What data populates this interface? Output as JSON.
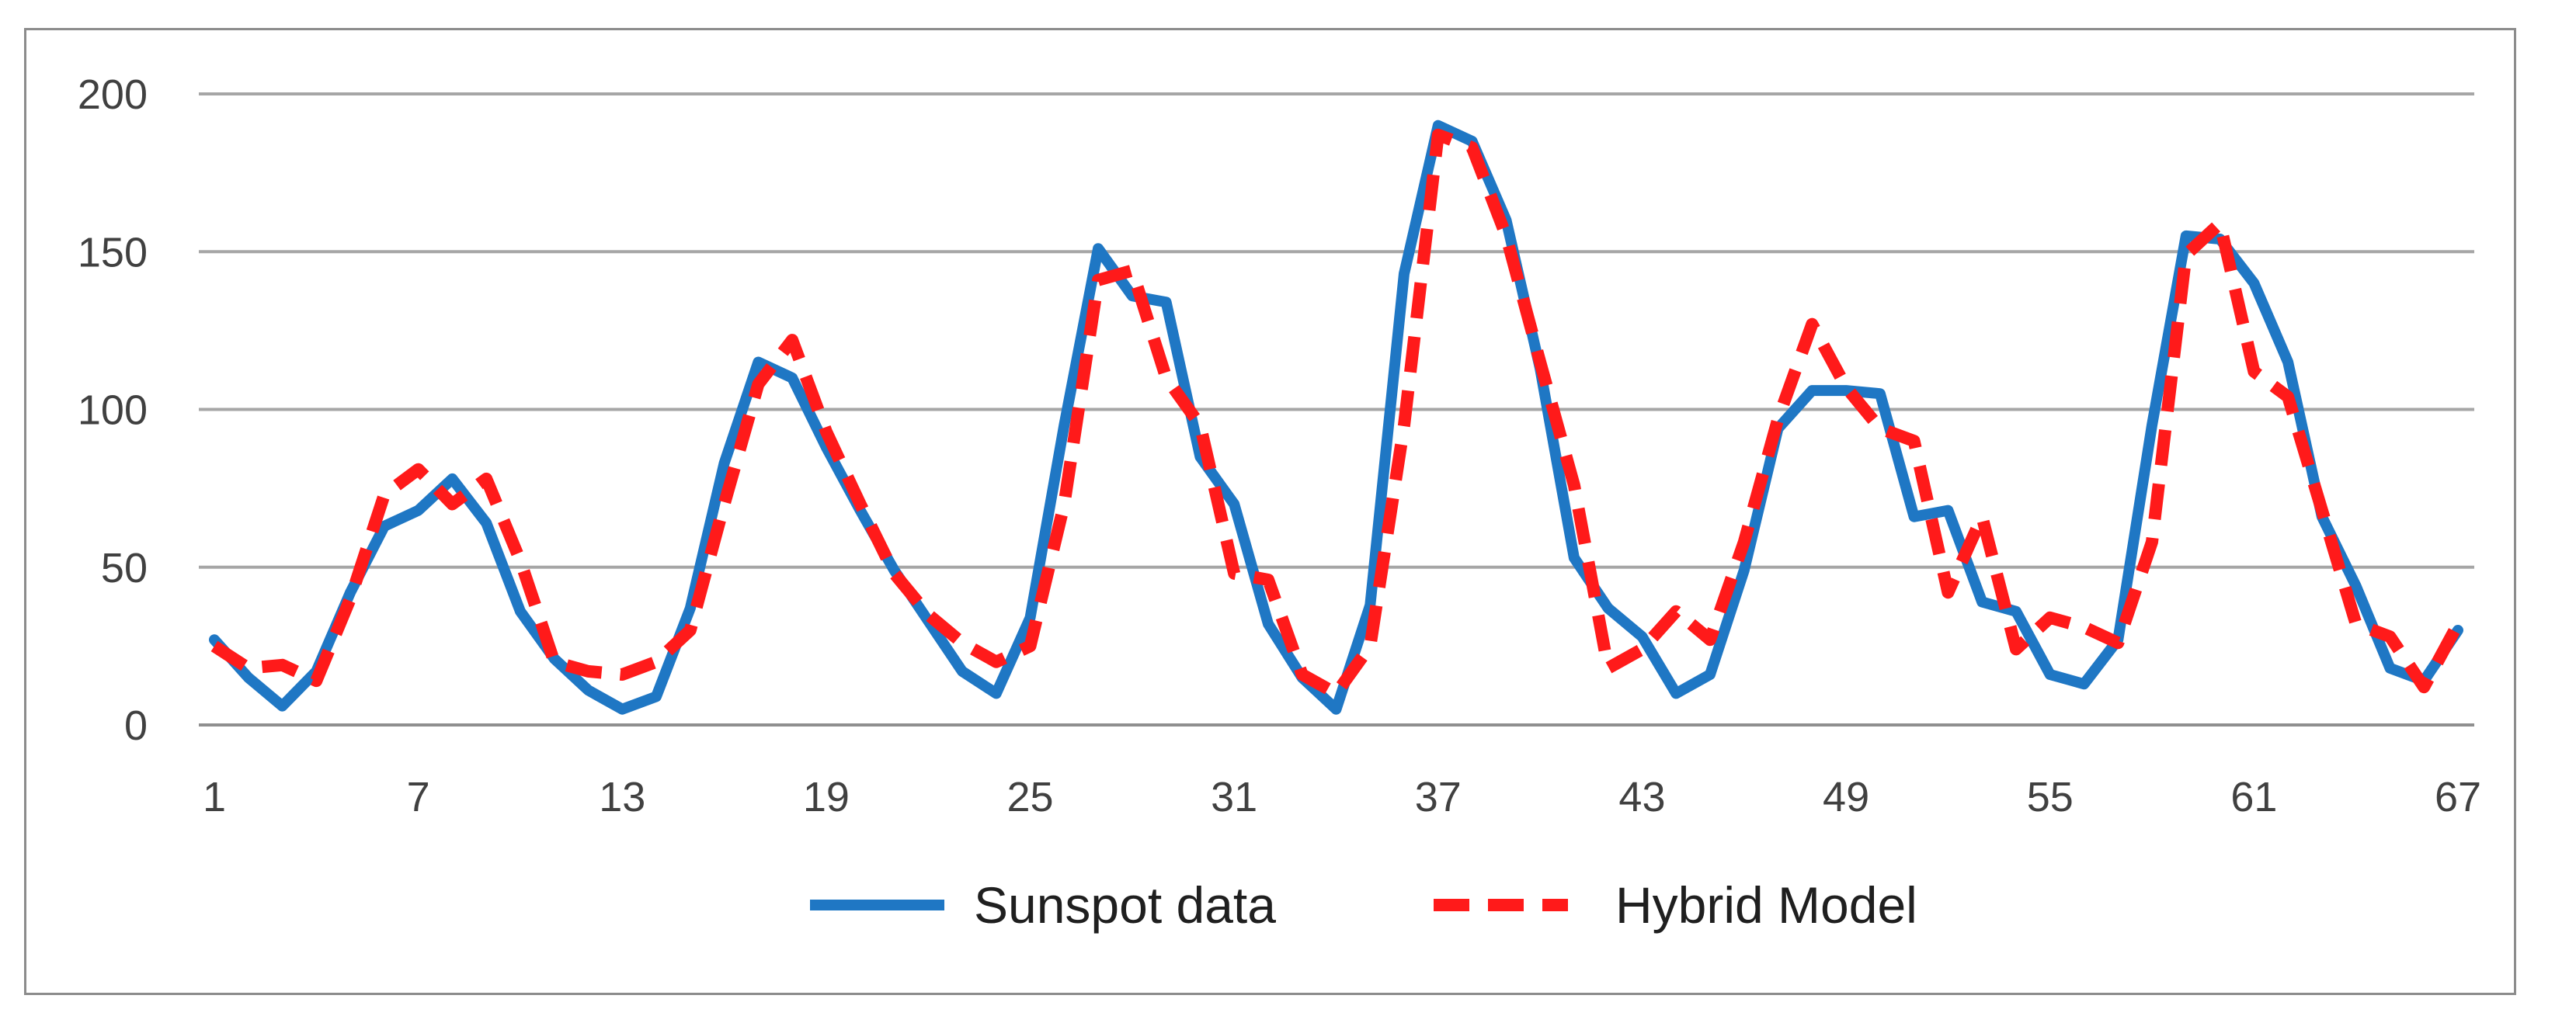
{
  "chart_data": {
    "type": "line",
    "title": "",
    "xlabel": "",
    "ylabel": "",
    "ylim": [
      0,
      200
    ],
    "yticks": [
      "0",
      "50",
      "100",
      "150",
      "200"
    ],
    "xlim": [
      1,
      67
    ],
    "xticks": [
      "1",
      "7",
      "13",
      "19",
      "25",
      "31",
      "37",
      "43",
      "49",
      "55",
      "61",
      "67"
    ],
    "grid": "horizontal",
    "legend_position": "bottom",
    "series": [
      {
        "name": "Sunspot data",
        "color": "#1f77c4",
        "style": "solid",
        "x": [
          1,
          2,
          3,
          4,
          5,
          6,
          7,
          8,
          9,
          10,
          11,
          12,
          13,
          14,
          15,
          16,
          17,
          18,
          19,
          20,
          21,
          22,
          23,
          24,
          25,
          26,
          27,
          28,
          29,
          30,
          31,
          32,
          33,
          34,
          35,
          36,
          37,
          38,
          39,
          40,
          41,
          42,
          43,
          44,
          45,
          46,
          47,
          48,
          49,
          50,
          51,
          52,
          53,
          54,
          55,
          56,
          57,
          58,
          59,
          60,
          61,
          62,
          63,
          64,
          65,
          66,
          67
        ],
        "y": [
          27,
          15,
          6,
          17,
          42,
          63,
          68,
          78,
          64,
          36,
          21,
          11,
          5,
          9,
          37,
          83,
          115,
          110,
          88,
          68,
          49,
          33,
          17,
          10,
          34,
          95,
          151,
          136,
          134,
          85,
          70,
          32,
          15,
          5,
          38,
          143,
          190,
          185,
          160,
          113,
          53,
          37,
          28,
          10,
          16,
          49,
          94,
          106,
          106,
          105,
          66,
          68,
          39,
          36,
          16,
          13,
          27,
          95,
          155,
          154,
          140,
          115,
          66,
          44,
          18,
          14,
          30
        ]
      },
      {
        "name": "Hybrid Model",
        "color": "#ff1a1a",
        "style": "dashed",
        "x": [
          1,
          2,
          3,
          4,
          5,
          6,
          7,
          8,
          9,
          10,
          11,
          12,
          13,
          14,
          15,
          16,
          17,
          18,
          19,
          20,
          21,
          22,
          23,
          24,
          25,
          26,
          27,
          28,
          29,
          30,
          31,
          32,
          33,
          34,
          35,
          36,
          37,
          38,
          39,
          40,
          41,
          42,
          43,
          44,
          45,
          46,
          47,
          48,
          49,
          50,
          51,
          52,
          53,
          54,
          55,
          56,
          57,
          58,
          59,
          60,
          61,
          62,
          63,
          64,
          65,
          66,
          67
        ],
        "y": [
          25,
          18,
          19,
          14,
          40,
          73,
          81,
          70,
          78,
          52,
          20,
          17,
          16,
          20,
          30,
          70,
          108,
          122,
          93,
          70,
          48,
          35,
          26,
          20,
          25,
          70,
          141,
          144,
          110,
          95,
          48,
          46,
          16,
          10,
          25,
          95,
          187,
          183,
          155,
          115,
          76,
          18,
          24,
          36,
          27,
          58,
          97,
          127,
          107,
          94,
          90,
          42,
          66,
          24,
          34,
          31,
          26,
          58,
          149,
          159,
          112,
          104,
          68,
          32,
          28,
          12,
          32
        ]
      }
    ]
  }
}
